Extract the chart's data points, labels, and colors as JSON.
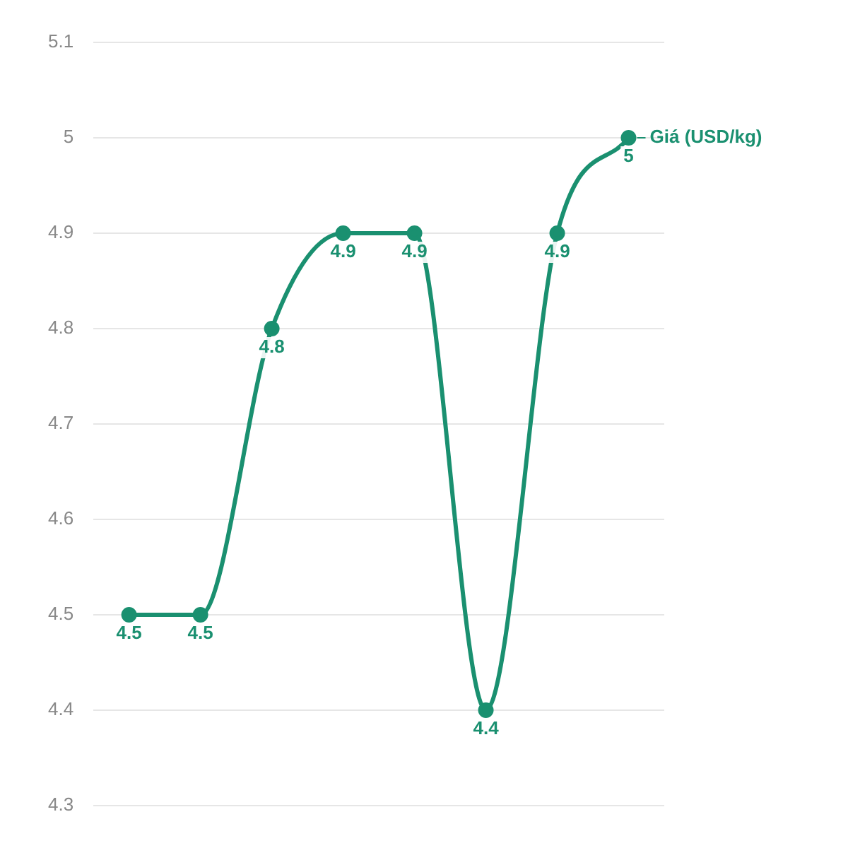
{
  "chart_data": {
    "type": "line",
    "categories": [
      null,
      null,
      null,
      null,
      null,
      null,
      null,
      null
    ],
    "series": [
      {
        "name": "Giá (USD/kg)",
        "color": "#1a9070",
        "values": [
          4.5,
          4.5,
          4.8,
          4.9,
          4.9,
          4.4,
          4.9,
          5
        ]
      }
    ],
    "ylim": [
      4.3,
      5.1
    ],
    "yticks": [
      4.3,
      4.4,
      4.5,
      4.6,
      4.7,
      4.8,
      4.9,
      5,
      5.1
    ],
    "grid": "y",
    "legend": false,
    "marker": "circle",
    "data_labels": true,
    "tick_labels": "y"
  }
}
